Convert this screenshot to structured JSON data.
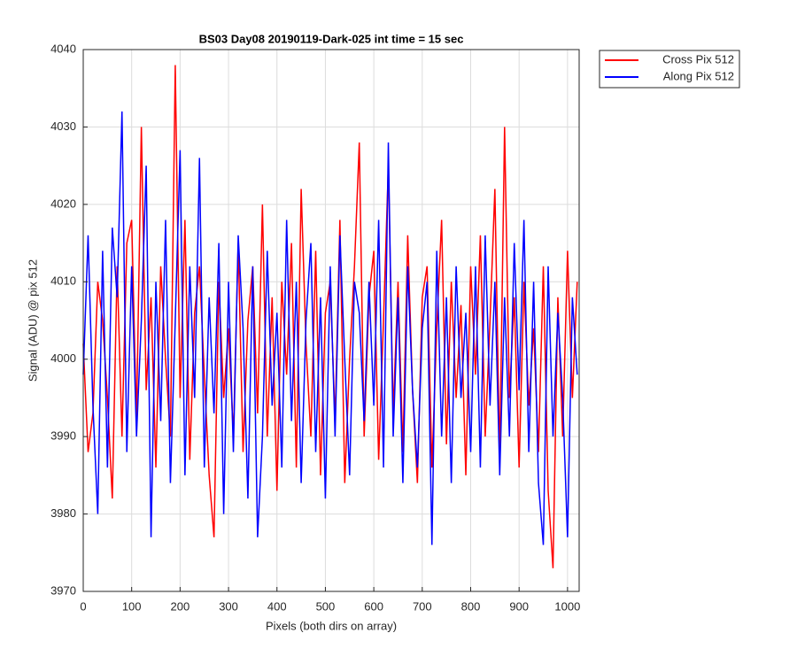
{
  "chart_data": {
    "type": "line",
    "title": "BS03 Day08 20190119-Dark-025 int time = 15 sec",
    "xlabel": "Pixels (both dirs on array)",
    "ylabel": "Signal (ADU) @ pix 512",
    "x": [
      0,
      10,
      20,
      30,
      40,
      50,
      60,
      70,
      80,
      90,
      100,
      110,
      120,
      130,
      140,
      150,
      160,
      170,
      180,
      190,
      200,
      210,
      220,
      230,
      240,
      250,
      260,
      270,
      280,
      290,
      300,
      310,
      320,
      330,
      340,
      350,
      360,
      370,
      380,
      390,
      400,
      410,
      420,
      430,
      440,
      450,
      460,
      470,
      480,
      490,
      500,
      510,
      520,
      530,
      540,
      550,
      560,
      570,
      580,
      590,
      600,
      610,
      620,
      630,
      640,
      650,
      660,
      670,
      680,
      690,
      700,
      710,
      720,
      730,
      740,
      750,
      760,
      770,
      780,
      790,
      800,
      810,
      820,
      830,
      840,
      850,
      860,
      870,
      880,
      890,
      900,
      910,
      920,
      930,
      940,
      950,
      960,
      970,
      980,
      990,
      1000,
      1010,
      1020
    ],
    "series": [
      {
        "name": "Cross Pix 512",
        "color": "#ff0000",
        "values": [
          4002,
          3988,
          3993,
          4010,
          4005,
          3995,
          3982,
          4012,
          3990,
          4015,
          4018,
          3992,
          4030,
          3996,
          4008,
          3986,
          4012,
          4000,
          3990,
          4038,
          3995,
          4018,
          3987,
          4006,
          4012,
          3998,
          3985,
          3977,
          4010,
          3995,
          4004,
          3990,
          4015,
          3988,
          4005,
          4012,
          3993,
          4020,
          3990,
          4008,
          3983,
          4010,
          3998,
          4015,
          3986,
          4022,
          4002,
          3990,
          4014,
          3985,
          4006,
          4010,
          3992,
          4018,
          3984,
          4000,
          4012,
          4028,
          3990,
          4008,
          4014,
          3987,
          4005,
          4025,
          3993,
          4010,
          3988,
          4016,
          3996,
          3984,
          4008,
          4012,
          3986,
          4004,
          4018,
          3989,
          4010,
          3995,
          4007,
          3985,
          4012,
          3998,
          4016,
          3990,
          4005,
          4022,
          3987,
          4030,
          3995,
          4008,
          3986,
          4010,
          3994,
          4004,
          3988,
          4012,
          3983,
          3973,
          4008,
          3990,
          4014,
          3995,
          4010
        ]
      },
      {
        "name": "Along Pix 512",
        "color": "#0000ff",
        "values": [
          3998,
          4016,
          3994,
          3980,
          4014,
          3986,
          4017,
          4008,
          4032,
          3988,
          4012,
          3990,
          4005,
          4025,
          3977,
          4010,
          3992,
          4018,
          3984,
          4005,
          4027,
          3985,
          4012,
          3995,
          4026,
          3986,
          4008,
          3993,
          4015,
          3980,
          4010,
          3988,
          4016,
          4004,
          3982,
          4012,
          3977,
          3990,
          4014,
          3994,
          4006,
          3986,
          4018,
          3992,
          4010,
          3984,
          4005,
          4015,
          3988,
          4008,
          3982,
          4012,
          3990,
          4016,
          4000,
          3985,
          4010,
          4006,
          3992,
          4010,
          3994,
          4018,
          3986,
          4028,
          3990,
          4008,
          3984,
          4012,
          3996,
          3986,
          4004,
          4010,
          3976,
          4014,
          3990,
          4008,
          3984,
          4012,
          3995,
          4006,
          3988,
          4012,
          3986,
          4016,
          3994,
          4010,
          3985,
          4008,
          3990,
          4015,
          3996,
          4018,
          3988,
          4010,
          3984,
          3976,
          4012,
          3990,
          4006,
          3995,
          3977,
          4008,
          3998
        ]
      }
    ],
    "xlim": [
      0,
      1024
    ],
    "ylim": [
      3970,
      4040
    ],
    "xticks": [
      0,
      100,
      200,
      300,
      400,
      500,
      600,
      700,
      800,
      900,
      1000
    ],
    "yticks": [
      3970,
      3980,
      3990,
      4000,
      4010,
      4020,
      4030,
      4040
    ],
    "grid": true,
    "legend": "outside-top-right"
  }
}
